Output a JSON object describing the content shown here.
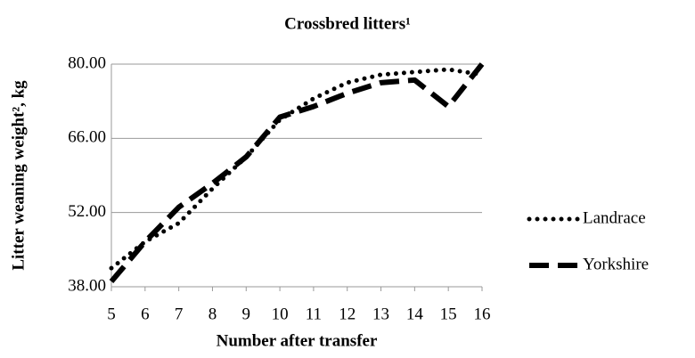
{
  "chart_data": {
    "type": "line",
    "title": "Crossbred litters¹",
    "x_label": "Number after transfer",
    "y_label": "Litter weaning weight², kg",
    "x": [
      5,
      6,
      7,
      8,
      9,
      10,
      11,
      12,
      13,
      14,
      15,
      16
    ],
    "series": [
      {
        "name": "Landrace",
        "color": "#000000",
        "dash": "dotted",
        "values": [
          41.5,
          46.5,
          50,
          56.5,
          62.5,
          69.5,
          73.5,
          76.5,
          78,
          78.5,
          79,
          78
        ]
      },
      {
        "name": "Yorkshire",
        "color": "#000000",
        "dash": "dashed",
        "values": [
          39,
          46.5,
          53,
          57.5,
          62.5,
          70,
          72,
          74.5,
          76.5,
          77,
          72,
          80
        ]
      }
    ],
    "xlim": [
      5,
      16
    ],
    "xticks": [
      5,
      6,
      7,
      8,
      9,
      10,
      11,
      12,
      13,
      14,
      15,
      16
    ],
    "ylim": [
      38,
      80
    ],
    "yticks": [
      {
        "value": 38,
        "label": "38.00"
      },
      {
        "value": 52,
        "label": "52.00"
      },
      {
        "value": 66,
        "label": "66.00"
      },
      {
        "value": 80,
        "label": "80.00"
      }
    ],
    "grid": true,
    "legend": "right"
  }
}
